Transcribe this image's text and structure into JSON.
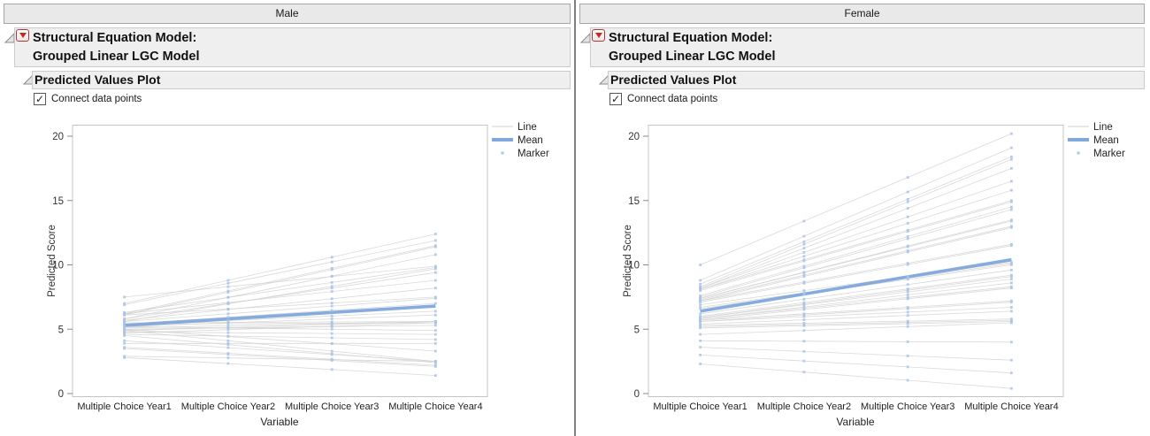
{
  "colors": {
    "mean_line": "#7FA8DC",
    "marker": "#A9C4E6",
    "subject_line": "#CFCFCF",
    "frame_border": "#C4C4C4",
    "tick": "#8A8A8A",
    "axis_text": "#333333",
    "label_text": "#1F1F1F",
    "red_menu": "#C42B1C"
  },
  "panels": [
    {
      "group_label": "Male",
      "outline_title_line1": "Structural Equation Model:",
      "outline_title_line2": "Grouped Linear LGC Model",
      "section_title": "Predicted Values Plot",
      "checkbox_label": "Connect data points",
      "checkbox_checked": true,
      "checkbox_glyph": "✓",
      "chart_data": {
        "type": "line",
        "categories": [
          "Multiple Choice Year1",
          "Multiple Choice Year2",
          "Multiple Choice Year3",
          "Multiple Choice Year4"
        ],
        "xlabel": "Variable",
        "ylabel": "Predicted Score",
        "ylim": [
          0,
          20
        ],
        "yticks": [
          0,
          5,
          10,
          15,
          20
        ],
        "grid": false,
        "legend_position": "top-right-outside",
        "legend": [
          "Line",
          "Mean",
          "Marker"
        ],
        "mean": [
          5.3,
          5.8,
          6.3,
          6.8
        ],
        "subjects": [
          [
            7.5,
            8.3,
            9.1,
            9.9
          ],
          [
            7.0,
            8.8,
            10.6,
            12.4
          ],
          [
            6.9,
            8.57,
            10.23,
            11.9
          ],
          [
            6.3,
            7.47,
            8.63,
            9.8
          ],
          [
            6.2,
            7.97,
            9.73,
            11.5
          ],
          [
            6.2,
            7.07,
            7.93,
            8.8
          ],
          [
            6.1,
            7.87,
            9.63,
            11.4
          ],
          [
            6.1,
            6.57,
            7.03,
            7.5
          ],
          [
            5.8,
            7.47,
            9.13,
            10.8
          ],
          [
            5.8,
            7.0,
            8.2,
            9.4
          ],
          [
            5.7,
            6.53,
            7.37,
            8.2
          ],
          [
            5.6,
            6.97,
            8.33,
            9.7
          ],
          [
            5.6,
            6.2,
            6.8,
            7.4
          ],
          [
            5.5,
            5.53,
            5.57,
            5.6
          ],
          [
            5.4,
            5.93,
            6.47,
            7.0
          ],
          [
            5.4,
            5.43,
            5.47,
            5.5
          ],
          [
            5.3,
            5.67,
            6.03,
            6.4
          ],
          [
            5.2,
            5.5,
            5.8,
            6.1
          ],
          [
            5.2,
            5.1,
            5.0,
            4.9
          ],
          [
            5.1,
            5.27,
            5.43,
            5.6
          ],
          [
            5.0,
            5.1,
            5.2,
            5.3
          ],
          [
            5.0,
            4.43,
            3.87,
            3.3
          ],
          [
            4.9,
            5.13,
            5.37,
            5.6
          ],
          [
            4.9,
            4.1,
            3.3,
            2.5
          ],
          [
            4.8,
            4.73,
            4.67,
            4.6
          ],
          [
            4.7,
            4.97,
            5.23,
            5.5
          ],
          [
            4.6,
            4.47,
            4.33,
            4.2
          ],
          [
            4.5,
            3.8,
            3.1,
            2.4
          ],
          [
            4.1,
            3.57,
            3.03,
            2.5
          ],
          [
            3.9,
            3.9,
            3.9,
            3.9
          ],
          [
            3.6,
            3.13,
            2.67,
            2.2
          ],
          [
            3.5,
            3.03,
            2.57,
            2.1
          ],
          [
            2.9,
            2.77,
            2.63,
            2.5
          ],
          [
            2.8,
            2.33,
            1.87,
            1.4
          ]
        ]
      }
    },
    {
      "group_label": "Female",
      "outline_title_line1": "Structural Equation Model:",
      "outline_title_line2": "Grouped Linear LGC Model",
      "section_title": "Predicted Values Plot",
      "checkbox_label": "Connect data points",
      "checkbox_checked": true,
      "checkbox_glyph": "✓",
      "chart_data": {
        "type": "line",
        "categories": [
          "Multiple Choice Year1",
          "Multiple Choice Year2",
          "Multiple Choice Year3",
          "Multiple Choice Year4"
        ],
        "xlabel": "Variable",
        "ylabel": "Predicted Score",
        "ylim": [
          0,
          20
        ],
        "yticks": [
          0,
          5,
          10,
          15,
          20
        ],
        "grid": false,
        "legend_position": "top-right-outside",
        "legend": [
          "Line",
          "Mean",
          "Marker"
        ],
        "mean": [
          6.4,
          7.73,
          9.07,
          10.4
        ],
        "subjects": [
          [
            10.0,
            13.4,
            16.8,
            20.2
          ],
          [
            8.8,
            12.23,
            15.67,
            19.1
          ],
          [
            8.5,
            11.8,
            15.1,
            18.4
          ],
          [
            8.3,
            11.6,
            14.9,
            18.2
          ],
          [
            8.2,
            11.3,
            14.4,
            17.5
          ],
          [
            8.2,
            10.97,
            13.73,
            16.5
          ],
          [
            8.1,
            10.67,
            13.23,
            15.8
          ],
          [
            8.1,
            10.4,
            12.7,
            15.0
          ],
          [
            8.0,
            10.3,
            12.6,
            14.9
          ],
          [
            7.6,
            9.9,
            12.2,
            14.5
          ],
          [
            7.5,
            9.77,
            12.03,
            14.3
          ],
          [
            7.4,
            9.43,
            11.47,
            13.5
          ],
          [
            7.4,
            9.4,
            11.4,
            13.4
          ],
          [
            7.3,
            9.2,
            11.1,
            13.0
          ],
          [
            7.2,
            9.1,
            11.0,
            12.9
          ],
          [
            7.2,
            8.67,
            10.13,
            11.6
          ],
          [
            7.1,
            8.57,
            10.03,
            11.5
          ],
          [
            6.9,
            8.0,
            9.1,
            10.2
          ],
          [
            6.7,
            7.83,
            8.97,
            10.1
          ],
          [
            6.6,
            7.73,
            8.87,
            10.0
          ],
          [
            6.2,
            7.33,
            8.47,
            9.6
          ],
          [
            6.0,
            7.07,
            8.13,
            9.2
          ],
          [
            5.9,
            6.97,
            8.03,
            9.1
          ],
          [
            5.9,
            6.9,
            7.9,
            8.9
          ],
          [
            5.8,
            6.73,
            7.67,
            8.6
          ],
          [
            5.8,
            6.63,
            7.47,
            8.3
          ],
          [
            5.7,
            6.53,
            7.37,
            8.2
          ],
          [
            5.7,
            6.2,
            6.7,
            7.2
          ],
          [
            5.6,
            6.1,
            6.6,
            7.1
          ],
          [
            5.6,
            5.97,
            6.33,
            6.7
          ],
          [
            5.4,
            5.73,
            6.07,
            6.4
          ],
          [
            5.3,
            5.47,
            5.63,
            5.8
          ],
          [
            5.2,
            5.37,
            5.53,
            5.7
          ],
          [
            5.1,
            5.27,
            5.43,
            5.6
          ],
          [
            4.6,
            4.9,
            5.2,
            5.5
          ],
          [
            4.1,
            4.07,
            4.03,
            4.0
          ],
          [
            3.6,
            3.27,
            2.93,
            2.6
          ],
          [
            3.0,
            2.53,
            2.07,
            1.6
          ],
          [
            2.3,
            1.67,
            1.03,
            0.4
          ]
        ]
      }
    }
  ]
}
